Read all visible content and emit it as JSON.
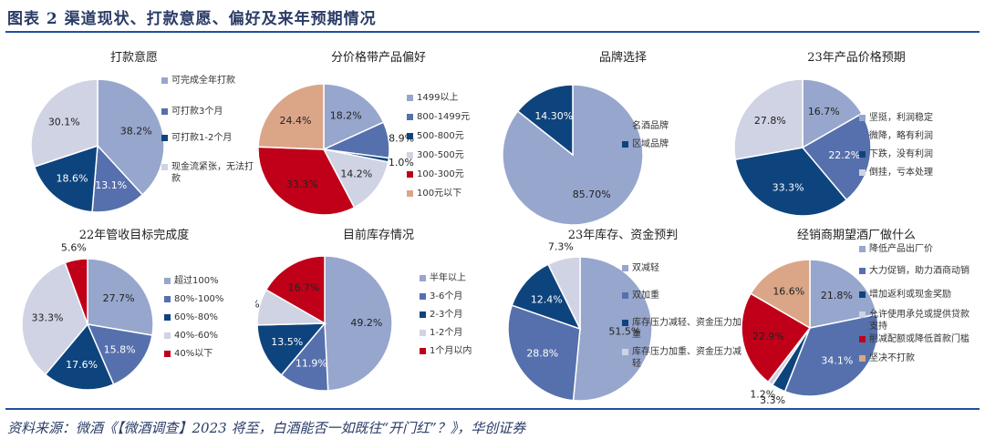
{
  "header": {
    "title": "图表 2   渠道现状、打款意愿、偏好及来年预期情况"
  },
  "footer": {
    "source": "资料来源：微酒《【微酒调查】2023 将至，白酒能否一如既往“开门红”？》，华创证券"
  },
  "colors": {
    "blue_light": "#97a6cd",
    "blue_mid": "#5670ad",
    "navy": "#0e447d",
    "grey_light": "#cfd3e4",
    "red": "#c00018",
    "salmon": "#dba688",
    "rule": "#1f4fa0"
  },
  "chart_data": [
    {
      "type": "pie",
      "title": "打款意愿",
      "slices": [
        {
          "label": "可完成全年打款",
          "value": 38.2,
          "display": "38.2%",
          "color": "#97a6cd"
        },
        {
          "label": "可打款3个月",
          "value": 13.1,
          "display": "13.1%",
          "color": "#5670ad"
        },
        {
          "label": "可打款1-2个月",
          "value": 18.6,
          "display": "18.6%",
          "color": "#0e447d"
        },
        {
          "label": "现金流紧张，无法打款",
          "value": 30.1,
          "display": "30.1%",
          "color": "#cfd3e4"
        }
      ]
    },
    {
      "type": "pie",
      "title": "分价格带产品偏好",
      "slices": [
        {
          "label": "1499以上",
          "value": 18.2,
          "display": "18.2%",
          "color": "#97a6cd"
        },
        {
          "label": "800-1499元",
          "value": 8.9,
          "display": "8.9%",
          "color": "#5670ad"
        },
        {
          "label": "500-800元",
          "value": 1.0,
          "display": "1.0%",
          "color": "#0e447d"
        },
        {
          "label": "300-500元",
          "value": 14.2,
          "display": "14.2%",
          "color": "#cfd3e4"
        },
        {
          "label": "100-300元",
          "value": 33.3,
          "display": "33.3%",
          "color": "#c00018"
        },
        {
          "label": "100元以下",
          "value": 24.4,
          "display": "24.4%",
          "color": "#dba688"
        }
      ]
    },
    {
      "type": "pie",
      "title": "品牌选择",
      "slices": [
        {
          "label": "名酒品牌",
          "value": 85.7,
          "display": "85.70%",
          "color": "#97a6cd"
        },
        {
          "label": "区域品牌",
          "value": 14.3,
          "display": "14.30%",
          "color": "#0e447d"
        }
      ]
    },
    {
      "type": "pie",
      "title": "23年产品价格预期",
      "slices": [
        {
          "label": "坚挺，利润稳定",
          "value": 16.7,
          "display": "16.7%",
          "color": "#97a6cd"
        },
        {
          "label": "微降，略有利润",
          "value": 22.2,
          "display": "22.2%",
          "color": "#5670ad"
        },
        {
          "label": "下跌，没有利润",
          "value": 33.3,
          "display": "33.3%",
          "color": "#0e447d"
        },
        {
          "label": "倒挂，亏本处理",
          "value": 27.8,
          "display": "27.8%",
          "color": "#cfd3e4"
        }
      ]
    },
    {
      "type": "pie",
      "title": "22年管收目标完成度",
      "slices": [
        {
          "label": "超过100%",
          "value": 27.7,
          "display": "27.7%",
          "color": "#97a6cd"
        },
        {
          "label": "80%-100%",
          "value": 15.8,
          "display": "15.8%",
          "color": "#5670ad"
        },
        {
          "label": "60%-80%",
          "value": 17.6,
          "display": "17.6%",
          "color": "#0e447d"
        },
        {
          "label": "40%-60%",
          "value": 33.3,
          "display": "33.3%",
          "color": "#cfd3e4"
        },
        {
          "label": "40%以下",
          "value": 5.6,
          "display": "5.6%",
          "color": "#c00018"
        }
      ]
    },
    {
      "type": "pie",
      "title": "目前库存情况",
      "slices": [
        {
          "label": "半年以上",
          "value": 49.2,
          "display": "49.2%",
          "color": "#97a6cd"
        },
        {
          "label": "3-6个月",
          "value": 11.9,
          "display": "11.9%",
          "color": "#5670ad"
        },
        {
          "label": "2-3个月",
          "value": 13.5,
          "display": "13.5%",
          "color": "#0e447d"
        },
        {
          "label": "1-2个月",
          "value": 8.7,
          "display": "8.7%",
          "color": "#cfd3e4"
        },
        {
          "label": "1个月以内",
          "value": 16.7,
          "display": "16.7%",
          "color": "#c00018"
        }
      ]
    },
    {
      "type": "pie",
      "title": "23年库存、资金预判",
      "slices": [
        {
          "label": "双减轻",
          "value": 51.5,
          "display": "51.5%",
          "color": "#97a6cd"
        },
        {
          "label": "双加重",
          "value": 28.8,
          "display": "28.8%",
          "color": "#5670ad"
        },
        {
          "label": "库存压力减轻、资金压力加重",
          "value": 12.4,
          "display": "12.4%",
          "color": "#0e447d"
        },
        {
          "label": "库存压力加重、资金压力减轻",
          "value": 7.3,
          "display": "7.3%",
          "color": "#cfd3e4"
        }
      ]
    },
    {
      "type": "pie",
      "title": "经销商期望酒厂做什么",
      "slices": [
        {
          "label": "降低产品出厂价",
          "value": 21.8,
          "display": "21.8%",
          "color": "#97a6cd"
        },
        {
          "label": "大力促销，助力酒商动销",
          "value": 34.1,
          "display": "34.1%",
          "color": "#5670ad"
        },
        {
          "label": "增加返利或现金奖励",
          "value": 3.3,
          "display": "3.3%",
          "color": "#0e447d"
        },
        {
          "label": "允许使用承兑或提供贷款支持",
          "value": 1.2,
          "display": "1.2%",
          "color": "#cfd3e4"
        },
        {
          "label": "削减配额或降低首款门槛",
          "value": 22.9,
          "display": "22.9%",
          "color": "#c00018"
        },
        {
          "label": "坚决不打款",
          "value": 16.6,
          "display": "16.6%",
          "color": "#dba688"
        }
      ]
    }
  ]
}
